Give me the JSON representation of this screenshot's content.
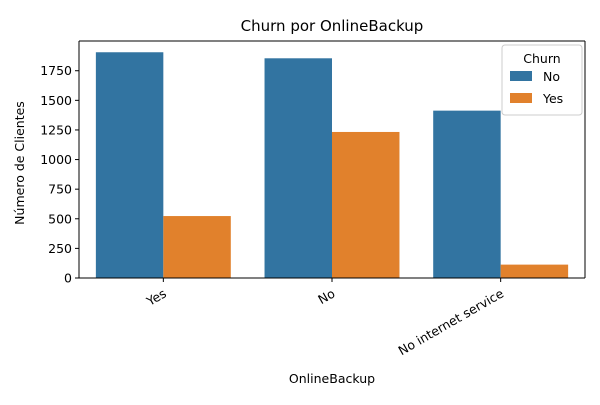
{
  "chart_data": {
    "type": "bar",
    "title": "Churn por OnlineBackup",
    "xlabel": "OnlineBackup",
    "ylabel": "Número de Clientes",
    "categories": [
      "Yes",
      "No",
      "No internet service"
    ],
    "series": [
      {
        "name": "No",
        "color": "#3274a1",
        "values": [
          1906,
          1855,
          1413
        ]
      },
      {
        "name": "Yes",
        "color": "#e1812c",
        "values": [
          523,
          1233,
          113
        ]
      }
    ],
    "yticks": [
      0,
      250,
      500,
      750,
      1000,
      1250,
      1500,
      1750
    ],
    "ylim": [
      0,
      2001
    ],
    "grid": false,
    "legend": {
      "title": "Churn",
      "placement": "top-right"
    }
  }
}
